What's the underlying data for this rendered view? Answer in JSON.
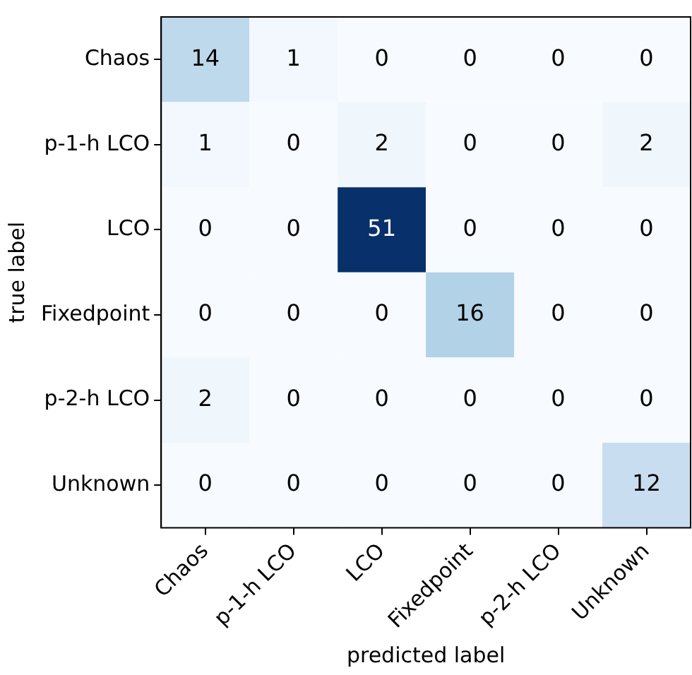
{
  "chart_data": {
    "type": "heatmap",
    "xlabel": "predicted label",
    "ylabel": "true label",
    "categories": [
      "Chaos",
      "p-1-h LCO",
      "LCO",
      "Fixedpoint",
      "p-2-h LCO",
      "Unknown"
    ],
    "y_categories": [
      "Chaos",
      "p-1-h LCO",
      "LCO",
      "Fixedpoint",
      "p-2-h LCO",
      "Unknown"
    ],
    "cells": [
      [
        14,
        1,
        0,
        0,
        0,
        0
      ],
      [
        1,
        0,
        2,
        0,
        0,
        2
      ],
      [
        0,
        0,
        51,
        0,
        0,
        0
      ],
      [
        0,
        0,
        0,
        16,
        0,
        0
      ],
      [
        2,
        0,
        0,
        0,
        0,
        0
      ],
      [
        0,
        0,
        0,
        0,
        0,
        12
      ]
    ],
    "data_labels": true,
    "grid": false,
    "legend": false
  }
}
